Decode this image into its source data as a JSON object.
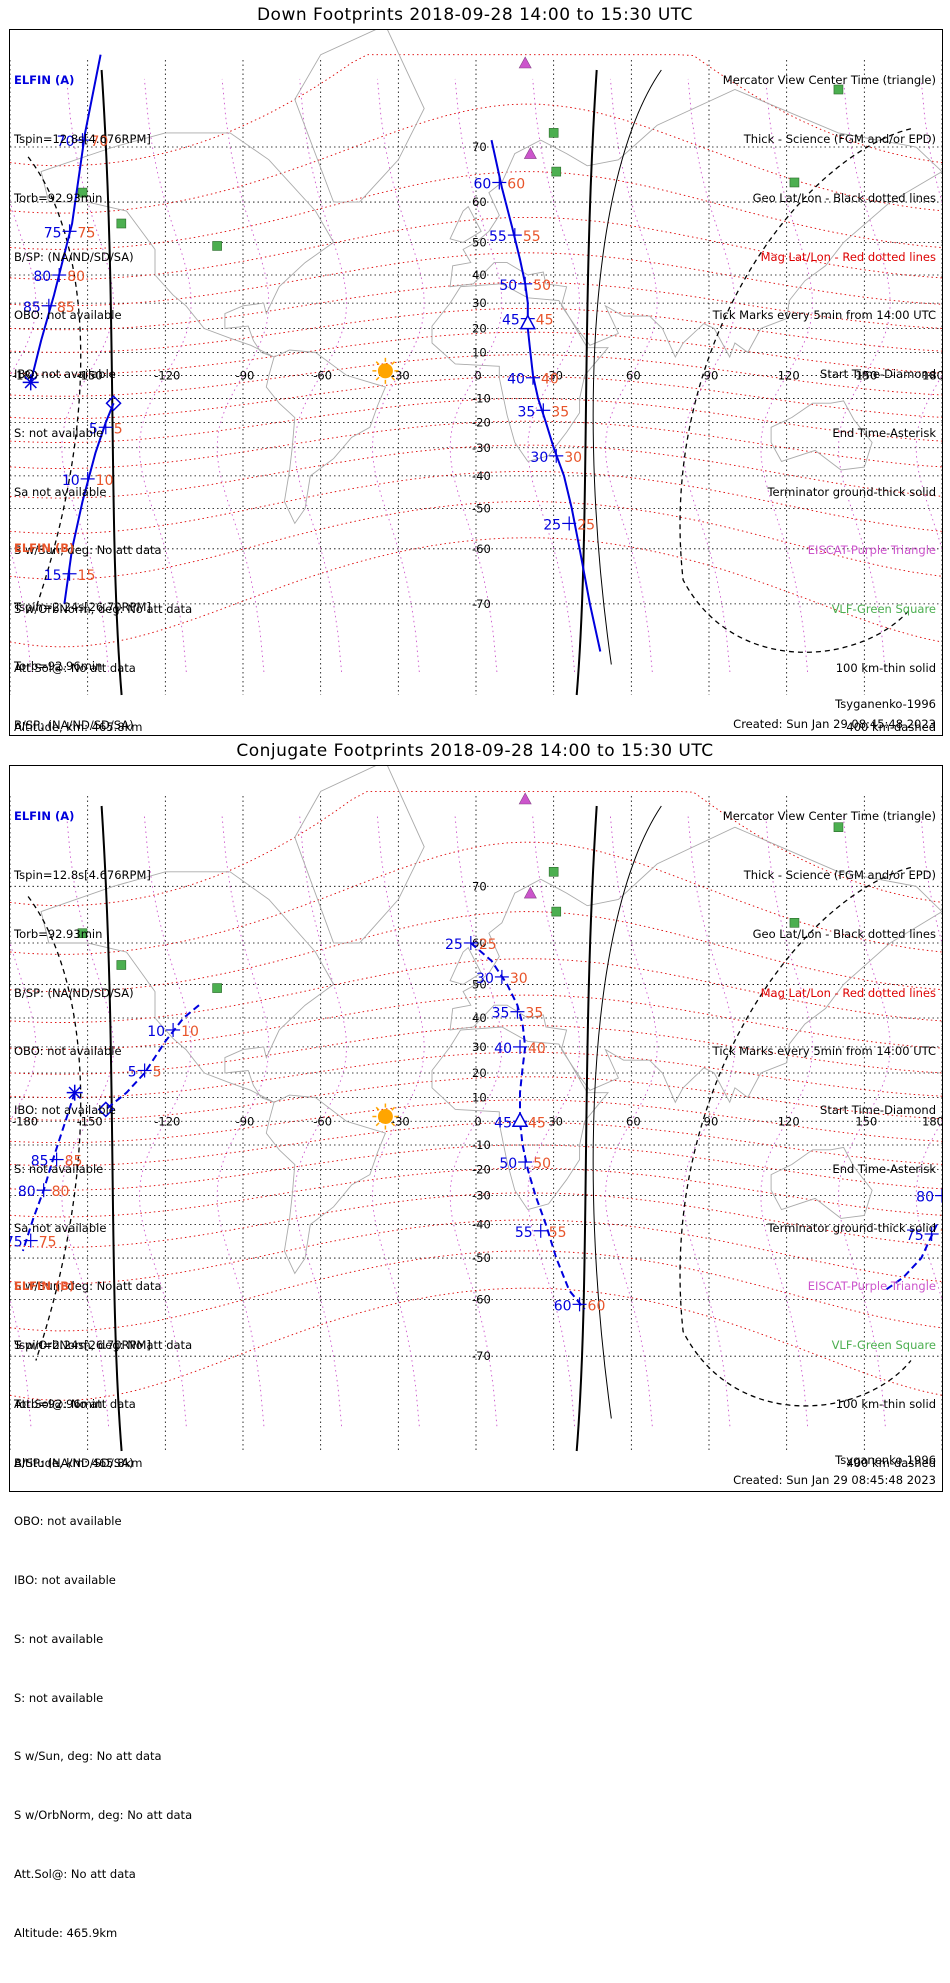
{
  "colors": {
    "sat_a": "#0000dd",
    "sat_b": "#e8542a",
    "mag_grid": "#dd0000",
    "eiscat": "#cc55cc",
    "vlf": "#4caf50",
    "sun": "#ffa500",
    "coast": "#aaaaaa"
  },
  "legend": {
    "items": [
      "Mercator View Center Time (triangle)",
      "Thick - Science (FGM and/or EPD)",
      "Geo Lat/Lon - Black dotted lines",
      "Mag Lat/Lon - Red dotted lines",
      "Tick Marks every 5min from 14:00 UTC",
      "Start Time-Diamond",
      "End Time-Asterisk",
      "Terminator ground-thick solid",
      "EISCAT-Purple Triangle",
      "VLF-Green Square",
      "100 km-thin solid",
      "400 km-dashed"
    ]
  },
  "sat_a_info": {
    "name": "ELFIN (A)",
    "lines": [
      "Tspin=12.8s[4.676RPM]",
      "Torb=92.93min",
      "B/SP: (NA/ND/SD/SA)",
      "OBO: not available",
      "IBO: not available",
      "S: not available",
      "Sa not available",
      "S w/Sun, deg: No att data",
      "S w/OrbNorm, deg: No att data",
      "Att.Sol@: No att data",
      "Altitude, km: 465.8km"
    ]
  },
  "sat_b_info": {
    "name": "ELFIN (B)",
    "lines": [
      "Tspin=2.24s[26.70RPM]",
      "Torb=92.96min",
      "B/SP: (NA/ND/SD/SA)",
      "OBO: not available",
      "IBO: not available",
      "S: not available",
      "S: not available",
      "S w/Sun, deg: No att data",
      "S w/OrbNorm, deg: No att data",
      "Att.Sol@: No att data",
      "Altitude: 465.9km"
    ]
  },
  "footer": {
    "model": "Tsyganenko-1996",
    "created": "Created: Sun Jan 29 08:45:48 2023"
  },
  "axes": {
    "lon_ticks": [
      "-180",
      "-150",
      "-120",
      "-90",
      "-60",
      "-30",
      "0",
      "30",
      "60",
      "90",
      "120",
      "150",
      "180"
    ],
    "lon_values": [
      -180,
      -150,
      -120,
      -90,
      -60,
      -30,
      0,
      30,
      60,
      90,
      120,
      150,
      180
    ],
    "lat_ticks": [
      "70",
      "60",
      "50",
      "40",
      "30",
      "20",
      "10",
      "0",
      "-10",
      "-20",
      "-30",
      "-40",
      "-50",
      "-60",
      "-70"
    ],
    "lat_values": [
      70,
      60,
      50,
      40,
      30,
      20,
      10,
      0,
      -10,
      -20,
      -30,
      -40,
      -50,
      -60,
      -70
    ]
  },
  "panels": [
    {
      "title": "Down Footprints 2018-09-28 14:00 to 15:30 UTC",
      "sat_a_track": {
        "line_style": "solid",
        "points": [
          [
            -145,
            80
          ],
          [
            -151,
            72
          ],
          [
            -156,
            55
          ],
          [
            -163,
            33
          ],
          [
            -168,
            15
          ],
          [
            -172,
            -3
          ]
        ],
        "ticks": [
          {
            "lon": -152,
            "lat": 71,
            "label": "70"
          },
          {
            "lon": -157,
            "lat": 53,
            "label": "75"
          },
          {
            "lon": -161,
            "lat": 40,
            "label": "80"
          },
          {
            "lon": -165,
            "lat": 29,
            "label": "85"
          }
        ],
        "end_marker": {
          "lon": -172,
          "lat": -3
        }
      },
      "sat_a_track2": {
        "points": [
          [
            6,
            71
          ],
          [
            10,
            63
          ],
          [
            14,
            54
          ],
          [
            17,
            45
          ],
          [
            19,
            37
          ],
          [
            20,
            30
          ],
          [
            20,
            20
          ],
          [
            21,
            10
          ],
          [
            22,
            0
          ],
          [
            24,
            -10
          ],
          [
            27,
            -20
          ],
          [
            30,
            -30
          ],
          [
            34,
            -40
          ],
          [
            37,
            -50
          ],
          [
            40,
            -60
          ],
          [
            44,
            -70
          ],
          [
            48,
            -76
          ]
        ],
        "ticks": [
          {
            "lon": 9,
            "lat": 64,
            "label": "60"
          },
          {
            "lon": 15,
            "lat": 52,
            "label": "55"
          },
          {
            "lon": 19,
            "lat": 37,
            "label": "50"
          },
          {
            "lon": 20,
            "lat": 24,
            "label": "45"
          },
          {
            "lon": 22,
            "lat": -1,
            "label": "40"
          },
          {
            "lon": 26,
            "lat": -15,
            "label": "35"
          },
          {
            "lon": 31,
            "lat": -33,
            "label": "30"
          },
          {
            "lon": 36,
            "lat": -54,
            "label": "25"
          }
        ],
        "center_marker": {
          "lon": 20,
          "lat": 22
        }
      },
      "sat_b_track": {
        "points": [
          [
            -140,
            -12
          ],
          [
            -143,
            -20
          ],
          [
            -147,
            -32
          ],
          [
            -152,
            -48
          ],
          [
            -156,
            -60
          ],
          [
            -159,
            -70
          ]
        ],
        "ticks": [
          {
            "lon": -143,
            "lat": -22,
            "label": "5"
          },
          {
            "lon": -150,
            "lat": -41,
            "label": "10"
          },
          {
            "lon": -157,
            "lat": -65,
            "label": "15"
          }
        ],
        "start_marker": {
          "lon": -140,
          "lat": -12
        }
      },
      "terminator_x": [
        -140,
        42
      ]
    },
    {
      "title": "Conjugate Footprints 2018-09-28 14:00 to 15:30 UTC",
      "sat_a_track": {
        "line_style": "dashed",
        "points": [
          [
            -107,
            44
          ],
          [
            -113,
            40
          ],
          [
            -120,
            32
          ],
          [
            -128,
            20
          ],
          [
            -135,
            12
          ],
          [
            -143,
            5
          ]
        ],
        "ticks": [
          {
            "lon": -117,
            "lat": 36,
            "label": "10"
          },
          {
            "lon": -128,
            "lat": 21,
            "label": "5"
          }
        ],
        "start_marker": {
          "lon": -143,
          "lat": 5
        }
      },
      "sat_a_track2": {
        "points": [
          [
            -2,
            60
          ],
          [
            6,
            56
          ],
          [
            12,
            50
          ],
          [
            16,
            44
          ],
          [
            18,
            38
          ],
          [
            19,
            30
          ],
          [
            18,
            22
          ],
          [
            17,
            12
          ],
          [
            17,
            0
          ],
          [
            18,
            -10
          ],
          [
            20,
            -20
          ],
          [
            23,
            -30
          ],
          [
            27,
            -40
          ],
          [
            31,
            -50
          ],
          [
            36,
            -58
          ],
          [
            42,
            -62
          ]
        ],
        "ticks": [
          {
            "lon": -2,
            "lat": 60,
            "label": "25"
          },
          {
            "lon": 10,
            "lat": 52,
            "label": "30"
          },
          {
            "lon": 16,
            "lat": 42,
            "label": "35"
          },
          {
            "lon": 17,
            "lat": 30,
            "label": "40"
          },
          {
            "lon": 17,
            "lat": 0,
            "label": "45"
          },
          {
            "lon": 19,
            "lat": -17,
            "label": "50"
          },
          {
            "lon": 25,
            "lat": -42,
            "label": "55"
          },
          {
            "lon": 40,
            "lat": -61,
            "label": "60"
          }
        ],
        "center_marker": {
          "lon": 17,
          "lat": 0
        }
      },
      "sat_b_track": {
        "points": [
          [
            -155,
            12
          ],
          [
            -158,
            2
          ],
          [
            -161,
            -8
          ],
          [
            -164,
            -18
          ],
          [
            -167,
            -28
          ],
          [
            -171,
            -38
          ],
          [
            -175,
            -48
          ]
        ],
        "ticks": [
          {
            "lon": -162,
            "lat": -16,
            "label": "85"
          },
          {
            "lon": -167,
            "lat": -28,
            "label": "80"
          },
          {
            "lon": -172,
            "lat": -45,
            "label": "75"
          }
        ],
        "end_marker": {
          "lon": -155,
          "lat": 12
        }
      },
      "sat_far_track": {
        "points": [
          [
            178,
            -40
          ],
          [
            172,
            -50
          ],
          [
            165,
            -55
          ],
          [
            158,
            -58
          ]
        ],
        "ticks": [
          {
            "lon": 176,
            "lat": -43,
            "label": "75"
          },
          {
            "lon": 180,
            "lat": -30,
            "label": "80"
          }
        ]
      },
      "terminator_x": [
        -140,
        42
      ]
    }
  ],
  "sun": {
    "lon": -35,
    "lat": 2
  },
  "eiscat": [
    {
      "lon": 19,
      "lat": 95
    },
    {
      "lon": 21,
      "lat": 69
    }
  ],
  "vlf": [
    {
      "lon": -152,
      "lat": 62
    },
    {
      "lon": -137,
      "lat": 55
    },
    {
      "lon": -100,
      "lat": 49
    },
    {
      "lon": 30,
      "lat": 72
    },
    {
      "lon": 31,
      "lat": 66
    },
    {
      "lon": 123,
      "lat": 64
    },
    {
      "lon": 140,
      "lat": 77
    }
  ]
}
